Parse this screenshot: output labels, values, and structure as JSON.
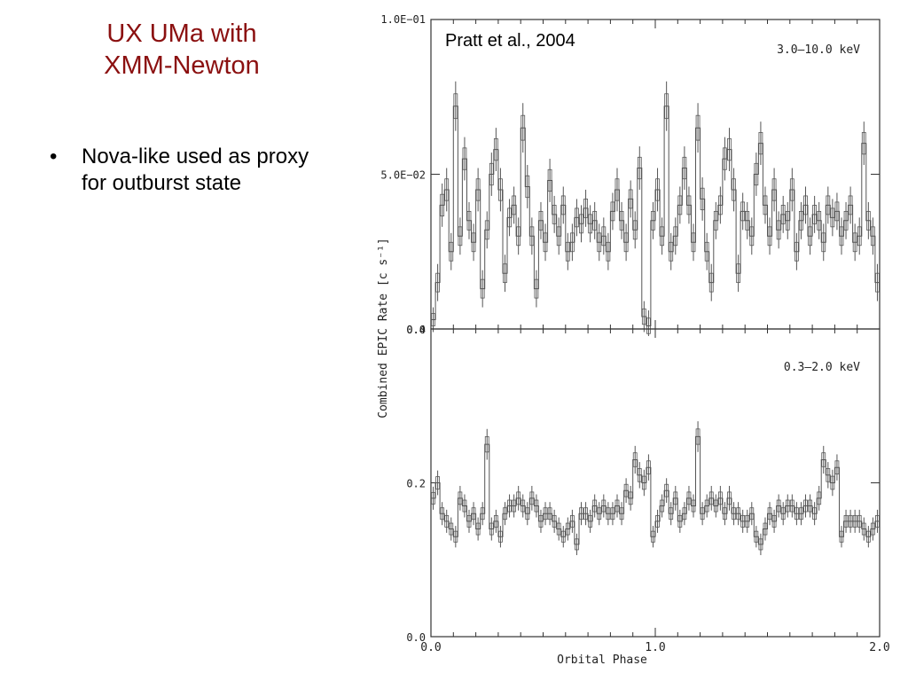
{
  "slide": {
    "title_line1": "UX UMa with",
    "title_line2": "XMM-Newton",
    "bullet_marker": "•",
    "bullet_line1": "Nova-like used as proxy",
    "bullet_line2": "for outburst state",
    "citation": "Pratt et al., 2004"
  },
  "chart_data": [
    {
      "type": "line",
      "panel": "top",
      "band_label": "3.0–10.0 keV",
      "ylabel": "Combined EPIC Rate [c s⁻¹]",
      "ylim": [
        0.0,
        0.1
      ],
      "ytick_labels": [
        "1.0E−01",
        "5.0E−02",
        "0.0"
      ],
      "ytick_values": [
        0.1,
        0.05,
        0.0
      ],
      "xlim": [
        0.0,
        2.0
      ],
      "x_bin_width": 0.02,
      "style": "histogram-step-with-error-bars",
      "values": [
        0.003,
        0.015,
        0.04,
        0.045,
        0.025,
        0.072,
        0.03,
        0.055,
        0.035,
        0.028,
        0.045,
        0.013,
        0.032,
        0.05,
        0.058,
        0.045,
        0.018,
        0.036,
        0.04,
        0.03,
        0.065,
        0.046,
        0.03,
        0.013,
        0.035,
        0.028,
        0.048,
        0.037,
        0.03,
        0.04,
        0.025,
        0.028,
        0.036,
        0.034,
        0.039,
        0.034,
        0.035,
        0.028,
        0.03,
        0.025,
        0.038,
        0.045,
        0.035,
        0.028,
        0.042,
        0.032,
        0.052,
        0.004,
        0.001,
        0.035,
        0.045,
        0.03,
        0.072,
        0.025,
        0.03,
        0.04,
        0.052,
        0.04,
        0.028,
        0.065,
        0.042,
        0.025,
        0.015,
        0.035,
        0.04,
        0.055,
        0.058,
        0.045,
        0.018,
        0.038,
        0.035,
        0.03,
        0.05,
        0.06,
        0.04,
        0.03,
        0.045,
        0.032,
        0.037,
        0.035,
        0.045,
        0.025,
        0.035,
        0.04,
        0.03,
        0.037,
        0.035,
        0.028,
        0.04,
        0.036,
        0.038,
        0.03,
        0.035,
        0.04,
        0.028,
        0.03,
        0.06,
        0.035,
        0.03,
        0.015
      ],
      "errors": [
        0.004,
        0.006,
        0.007,
        0.007,
        0.006,
        0.008,
        0.006,
        0.007,
        0.006,
        0.006,
        0.007,
        0.006,
        0.006,
        0.007,
        0.007,
        0.007,
        0.006,
        0.006,
        0.006,
        0.006,
        0.008,
        0.007,
        0.006,
        0.006,
        0.006,
        0.006,
        0.007,
        0.006,
        0.006,
        0.006,
        0.006,
        0.006,
        0.006,
        0.006,
        0.006,
        0.006,
        0.006,
        0.006,
        0.006,
        0.006,
        0.006,
        0.007,
        0.006,
        0.006,
        0.006,
        0.006,
        0.007,
        0.005,
        0.005,
        0.006,
        0.007,
        0.006,
        0.008,
        0.006,
        0.006,
        0.006,
        0.007,
        0.006,
        0.006,
        0.008,
        0.007,
        0.006,
        0.006,
        0.006,
        0.006,
        0.007,
        0.007,
        0.007,
        0.006,
        0.006,
        0.006,
        0.006,
        0.007,
        0.007,
        0.006,
        0.006,
        0.007,
        0.006,
        0.006,
        0.006,
        0.007,
        0.006,
        0.006,
        0.006,
        0.006,
        0.006,
        0.006,
        0.006,
        0.006,
        0.006,
        0.006,
        0.006,
        0.006,
        0.006,
        0.006,
        0.006,
        0.007,
        0.006,
        0.006,
        0.006
      ]
    },
    {
      "type": "line",
      "panel": "bottom",
      "band_label": "0.3–2.0 keV",
      "xlabel": "Orbital Phase",
      "ylim": [
        0.0,
        0.4
      ],
      "ytick_labels": [
        "0.4",
        "0.2",
        "0.0"
      ],
      "ytick_values": [
        0.4,
        0.2,
        0.0
      ],
      "xlim": [
        0.0,
        2.0
      ],
      "xtick_labels": [
        "0.0",
        "1.0",
        "2.0"
      ],
      "xtick_values": [
        0.0,
        1.0,
        2.0
      ],
      "x_bin_width": 0.02,
      "style": "histogram-step-with-error-bars",
      "values": [
        0.18,
        0.2,
        0.16,
        0.15,
        0.14,
        0.13,
        0.18,
        0.17,
        0.15,
        0.16,
        0.14,
        0.16,
        0.25,
        0.14,
        0.15,
        0.13,
        0.16,
        0.17,
        0.17,
        0.18,
        0.17,
        0.16,
        0.18,
        0.17,
        0.15,
        0.16,
        0.16,
        0.15,
        0.14,
        0.13,
        0.14,
        0.15,
        0.12,
        0.16,
        0.16,
        0.15,
        0.17,
        0.16,
        0.17,
        0.16,
        0.16,
        0.17,
        0.16,
        0.19,
        0.18,
        0.23,
        0.21,
        0.2,
        0.22,
        0.13,
        0.15,
        0.17,
        0.19,
        0.16,
        0.18,
        0.15,
        0.16,
        0.18,
        0.17,
        0.26,
        0.16,
        0.17,
        0.18,
        0.17,
        0.18,
        0.16,
        0.18,
        0.16,
        0.16,
        0.15,
        0.15,
        0.16,
        0.13,
        0.12,
        0.14,
        0.16,
        0.15,
        0.17,
        0.16,
        0.17,
        0.17,
        0.16,
        0.16,
        0.17,
        0.17,
        0.16,
        0.18,
        0.23,
        0.21,
        0.2,
        0.22,
        0.13,
        0.15,
        0.15,
        0.15,
        0.15,
        0.14,
        0.13,
        0.14,
        0.15
      ],
      "errors": [
        0.015,
        0.016,
        0.015,
        0.015,
        0.015,
        0.014,
        0.016,
        0.015,
        0.015,
        0.015,
        0.015,
        0.015,
        0.02,
        0.015,
        0.015,
        0.014,
        0.015,
        0.015,
        0.015,
        0.016,
        0.015,
        0.015,
        0.016,
        0.015,
        0.015,
        0.015,
        0.015,
        0.015,
        0.015,
        0.014,
        0.015,
        0.015,
        0.014,
        0.015,
        0.015,
        0.015,
        0.015,
        0.015,
        0.015,
        0.015,
        0.015,
        0.015,
        0.015,
        0.016,
        0.016,
        0.018,
        0.017,
        0.017,
        0.017,
        0.014,
        0.015,
        0.015,
        0.016,
        0.015,
        0.016,
        0.015,
        0.015,
        0.016,
        0.015,
        0.02,
        0.015,
        0.015,
        0.016,
        0.015,
        0.016,
        0.015,
        0.016,
        0.015,
        0.015,
        0.015,
        0.015,
        0.015,
        0.014,
        0.014,
        0.015,
        0.015,
        0.015,
        0.015,
        0.015,
        0.015,
        0.015,
        0.015,
        0.015,
        0.015,
        0.015,
        0.015,
        0.016,
        0.018,
        0.017,
        0.017,
        0.017,
        0.014,
        0.015,
        0.015,
        0.015,
        0.015,
        0.015,
        0.014,
        0.015,
        0.015
      ]
    }
  ]
}
